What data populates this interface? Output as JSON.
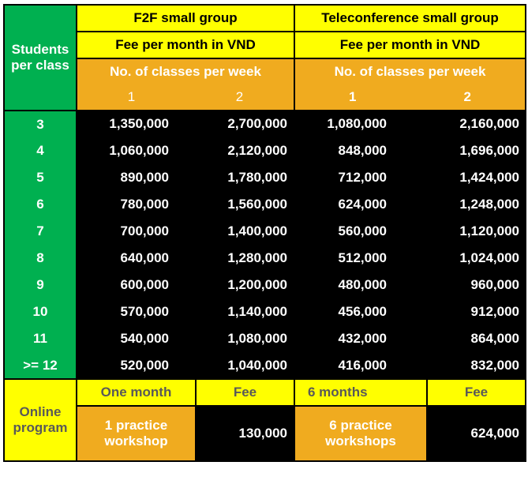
{
  "header": {
    "students_per_class": "Students per class",
    "groups": [
      "F2F small group",
      "Teleconference small group"
    ],
    "fee_label": "Fee per month in VND",
    "classes_label": "No. of classes per week",
    "class_counts": [
      "1",
      "2"
    ]
  },
  "rows": [
    {
      "students": "3",
      "f2f": [
        "1,350,000",
        "2,700,000"
      ],
      "tele": [
        "1,080,000",
        "2,160,000"
      ]
    },
    {
      "students": "4",
      "f2f": [
        "1,060,000",
        "2,120,000"
      ],
      "tele": [
        "848,000",
        "1,696,000"
      ]
    },
    {
      "students": "5",
      "f2f": [
        "890,000",
        "1,780,000"
      ],
      "tele": [
        "712,000",
        "1,424,000"
      ]
    },
    {
      "students": "6",
      "f2f": [
        "780,000",
        "1,560,000"
      ],
      "tele": [
        "624,000",
        "1,248,000"
      ]
    },
    {
      "students": "7",
      "f2f": [
        "700,000",
        "1,400,000"
      ],
      "tele": [
        "560,000",
        "1,120,000"
      ]
    },
    {
      "students": "8",
      "f2f": [
        "640,000",
        "1,280,000"
      ],
      "tele": [
        "512,000",
        "1,024,000"
      ]
    },
    {
      "students": "9",
      "f2f": [
        "600,000",
        "1,200,000"
      ],
      "tele": [
        "480,000",
        "960,000"
      ]
    },
    {
      "students": "10",
      "f2f": [
        "570,000",
        "1,140,000"
      ],
      "tele": [
        "456,000",
        "912,000"
      ]
    },
    {
      "students": "11",
      "f2f": [
        "540,000",
        "1,080,000"
      ],
      "tele": [
        "432,000",
        "864,000"
      ]
    },
    {
      "students": ">= 12",
      "f2f": [
        "520,000",
        "1,040,000"
      ],
      "tele": [
        "416,000",
        "832,000"
      ]
    }
  ],
  "online": {
    "label": "Online program",
    "one_month": "One month",
    "fee": "Fee",
    "six_months": "6 months",
    "one_workshop": "1 practice workshop",
    "one_fee": "130,000",
    "six_workshops": "6 practice workshops",
    "six_fee": "624,000"
  }
}
